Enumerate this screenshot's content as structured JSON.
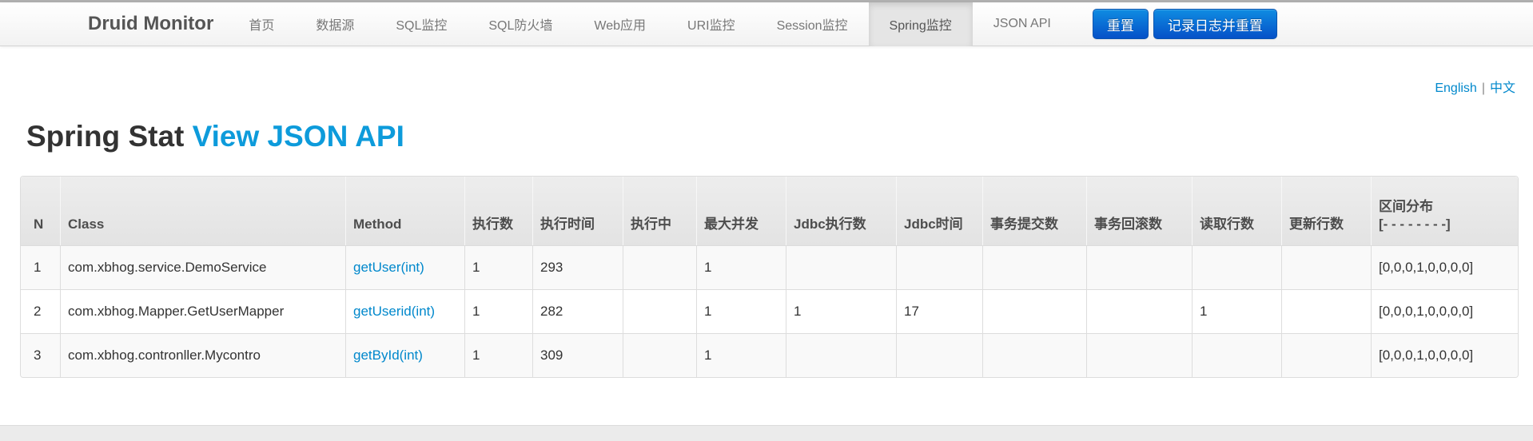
{
  "navbar": {
    "brand": "Druid Monitor",
    "items": [
      {
        "id": "home",
        "label": "首页"
      },
      {
        "id": "datasource",
        "label": "数据源"
      },
      {
        "id": "sql",
        "label": "SQL监控"
      },
      {
        "id": "wall",
        "label": "SQL防火墙"
      },
      {
        "id": "webapp",
        "label": "Web应用"
      },
      {
        "id": "uri",
        "label": "URI监控"
      },
      {
        "id": "session",
        "label": "Session监控"
      },
      {
        "id": "spring",
        "label": "Spring监控",
        "active": true
      },
      {
        "id": "json-api",
        "label": "JSON API"
      }
    ],
    "buttons": [
      {
        "id": "reset",
        "label": "重置"
      },
      {
        "id": "log-and-reset",
        "label": "记录日志并重置"
      }
    ]
  },
  "language_switch": {
    "english": "English",
    "separator": "|",
    "chinese": "中文"
  },
  "heading": {
    "title": "Spring Stat",
    "link_label": "View JSON API"
  },
  "spring_table": {
    "columns": [
      {
        "label": "N"
      },
      {
        "label": "Class"
      },
      {
        "label": "Method"
      },
      {
        "label": "执行数"
      },
      {
        "label": "执行时间"
      },
      {
        "label": "执行中"
      },
      {
        "label": "最大并发"
      },
      {
        "label": "Jdbc执行数"
      },
      {
        "label": "Jdbc时间"
      },
      {
        "label": "事务提交数"
      },
      {
        "label": "事务回滚数"
      },
      {
        "label": "读取行数"
      },
      {
        "label": "更新行数"
      },
      {
        "label": "区间分布",
        "sub": "[- - - - - - - -]"
      }
    ],
    "rows": [
      {
        "n": "1",
        "class": "com.xbhog.service.DemoService",
        "method": "getUser(int)",
        "values": [
          "1",
          "293",
          "",
          "1",
          "",
          "",
          "",
          "",
          "",
          "",
          "[0,0,0,1,0,0,0,0]"
        ]
      },
      {
        "n": "2",
        "class": "com.xbhog.Mapper.GetUserMapper",
        "method": "getUserid(int)",
        "values": [
          "1",
          "282",
          "",
          "1",
          "1",
          "17",
          "",
          "",
          "1",
          "",
          "[0,0,0,1,0,0,0,0]"
        ]
      },
      {
        "n": "3",
        "class": "com.xbhog.contronller.Mycontro",
        "method": "getById(int)",
        "values": [
          "1",
          "309",
          "",
          "1",
          "",
          "",
          "",
          "",
          "",
          "",
          "[0,0,0,1,0,0,0,0]"
        ]
      }
    ]
  },
  "colors": {
    "accent_blue": "#0088cc",
    "heading_link_blue": "#0d9bdb",
    "button_top": "#0f8ce2",
    "button_bottom": "#0551c8",
    "navbar_active_bg": "#e5e5e5"
  }
}
